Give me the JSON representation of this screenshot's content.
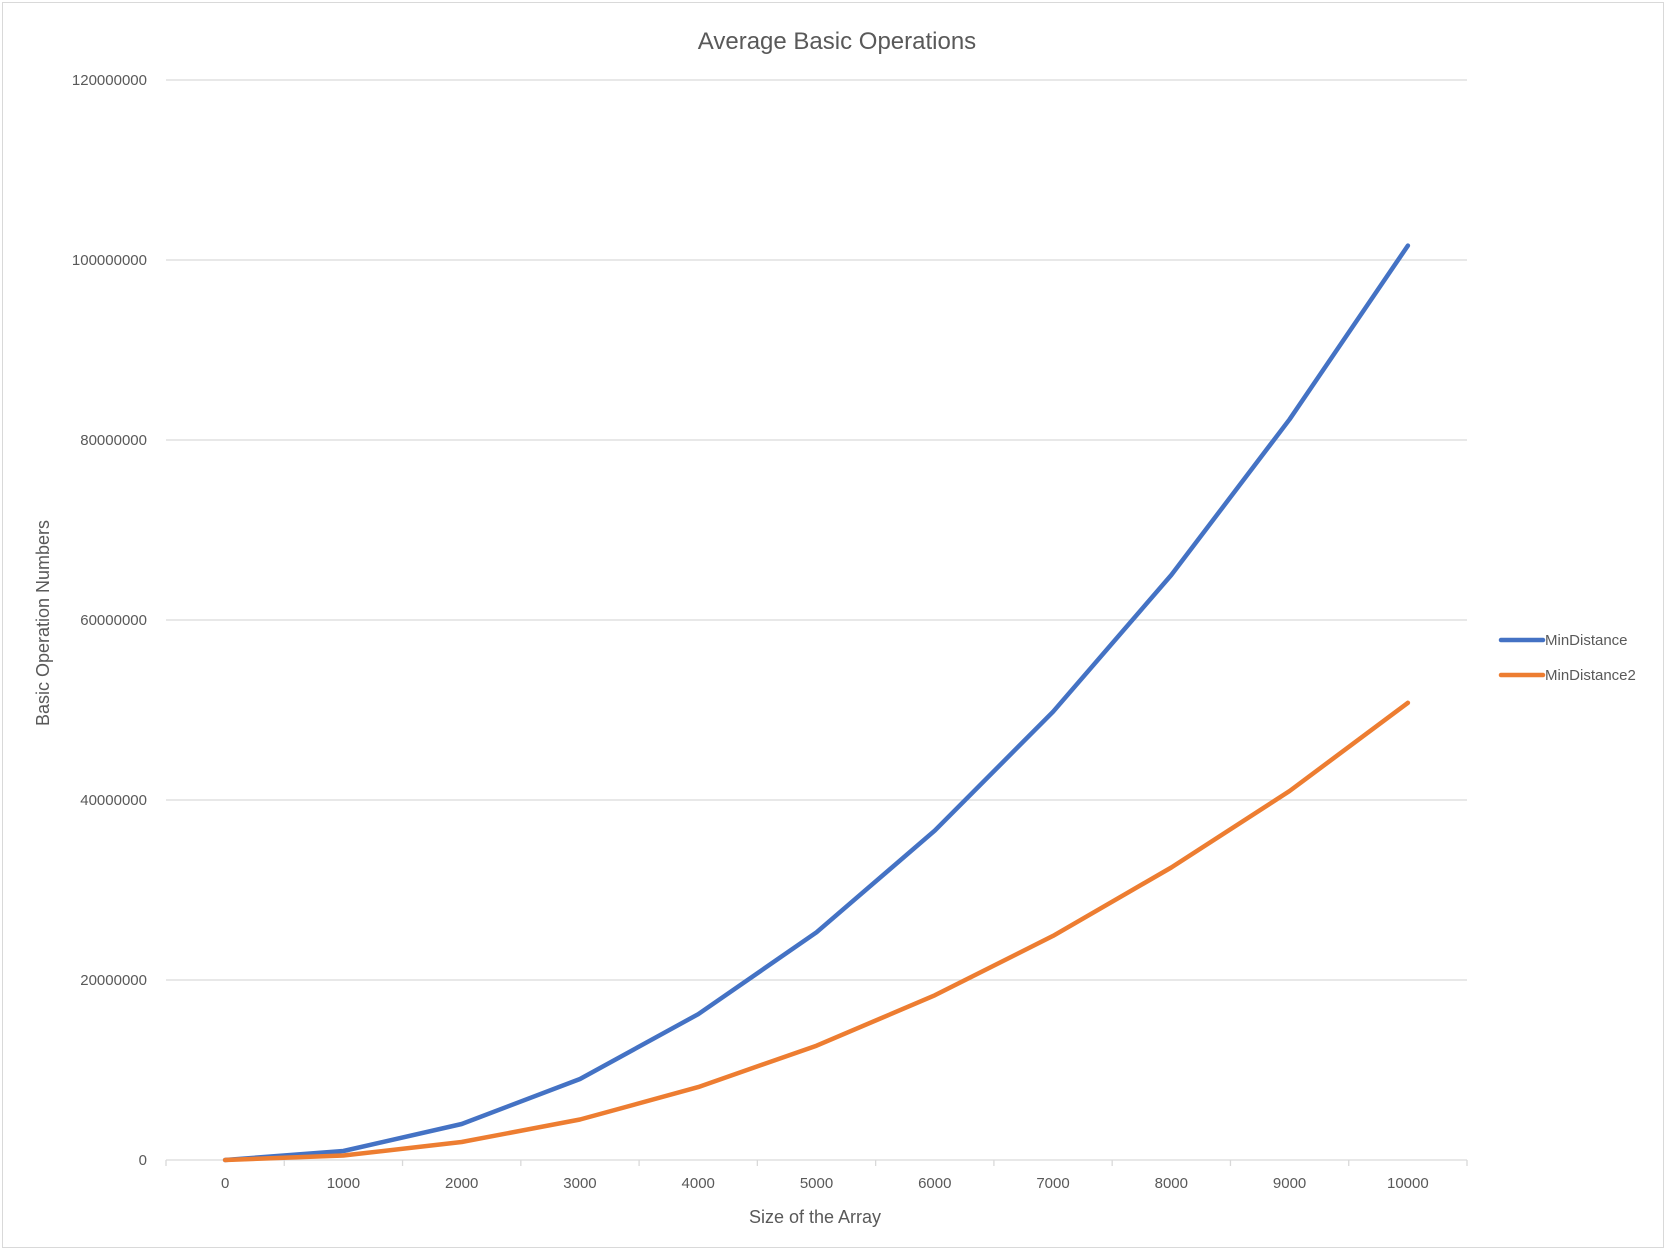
{
  "chart_data": {
    "type": "line",
    "title": "Average Basic Operations",
    "xlabel": "Size of the Array",
    "ylabel": "Basic Operation Numbers",
    "categories": [
      "0",
      "1000",
      "2000",
      "3000",
      "4000",
      "5000",
      "6000",
      "7000",
      "8000",
      "9000",
      "10000"
    ],
    "ylim": [
      0,
      120000000
    ],
    "yticks": [
      "0",
      "20000000",
      "40000000",
      "60000000",
      "80000000",
      "100000000",
      "120000000"
    ],
    "ytick_values": [
      0,
      20000000,
      40000000,
      60000000,
      80000000,
      100000000,
      120000000
    ],
    "grid": true,
    "legend_position": "right",
    "series": [
      {
        "name": "MinDistance",
        "color": "#4472C4",
        "values": [
          0,
          1000000,
          4000000,
          9000000,
          16200000,
          25300000,
          36600000,
          49800000,
          65000000,
          82300000,
          101600000
        ]
      },
      {
        "name": "MinDistance2",
        "color": "#ED7D31",
        "values": [
          0,
          500000,
          2000000,
          4500000,
          8100000,
          12700000,
          18300000,
          24900000,
          32500000,
          41000000,
          50800000
        ]
      }
    ]
  }
}
